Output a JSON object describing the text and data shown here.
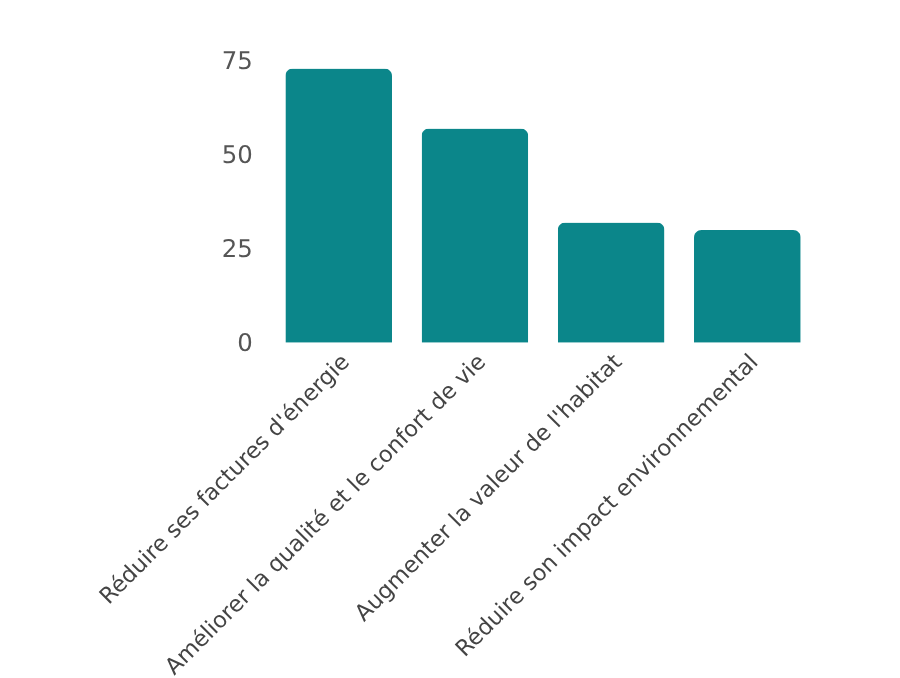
{
  "chart_data": {
    "type": "bar",
    "categories": [
      "Réduire ses factures d'énergie",
      "Améliorer la qualité et le confort de vie",
      "Augmenter la valeur de l'habitat",
      "Réduire son impact environnemental"
    ],
    "values": [
      73,
      57,
      32,
      30
    ],
    "color": "#0b868a",
    "ylim": [
      0,
      75
    ],
    "yticks": [
      0,
      25,
      50,
      75
    ],
    "grid": false
  }
}
